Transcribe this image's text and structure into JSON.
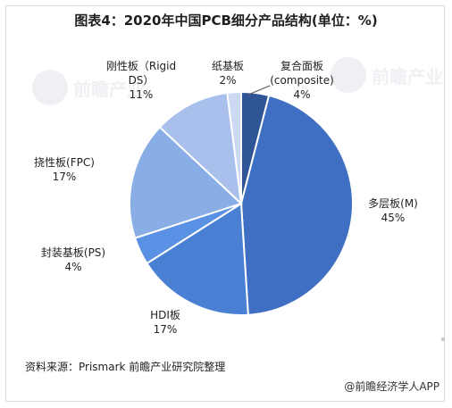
{
  "title": "图表4：2020年中国PCB细分产品结构(单位：%)",
  "source": "资料来源：Prismark 前瞻产业研究院整理",
  "brand": "@前瞻经济学人APP",
  "watermark": "前瞻产业",
  "chart_data": {
    "type": "pie",
    "title": "图表4：2020年中国PCB细分产品结构(单位：%)",
    "unit": "%",
    "start": "12 o'clock",
    "direction": "clockwise",
    "slices": [
      {
        "name": "复合面板",
        "subname": "(composite)",
        "value": 4,
        "color": "#2f5597"
      },
      {
        "name": "多层板(M)",
        "subname": "",
        "value": 45,
        "color": "#3f6fc2"
      },
      {
        "name": "HDI板",
        "subname": "",
        "value": 17,
        "color": "#4a80d4"
      },
      {
        "name": "封装基板(PS)",
        "subname": "",
        "value": 4,
        "color": "#5a91e4"
      },
      {
        "name": "挠性板(FPC)",
        "subname": "",
        "value": 17,
        "color": "#89aee6"
      },
      {
        "name": "刚性板（Rigid",
        "subname": "DS）",
        "value": 11,
        "color": "#a9c0ec"
      },
      {
        "name": "纸基板",
        "subname": "",
        "value": 2,
        "color": "#cdd9f3"
      }
    ]
  }
}
